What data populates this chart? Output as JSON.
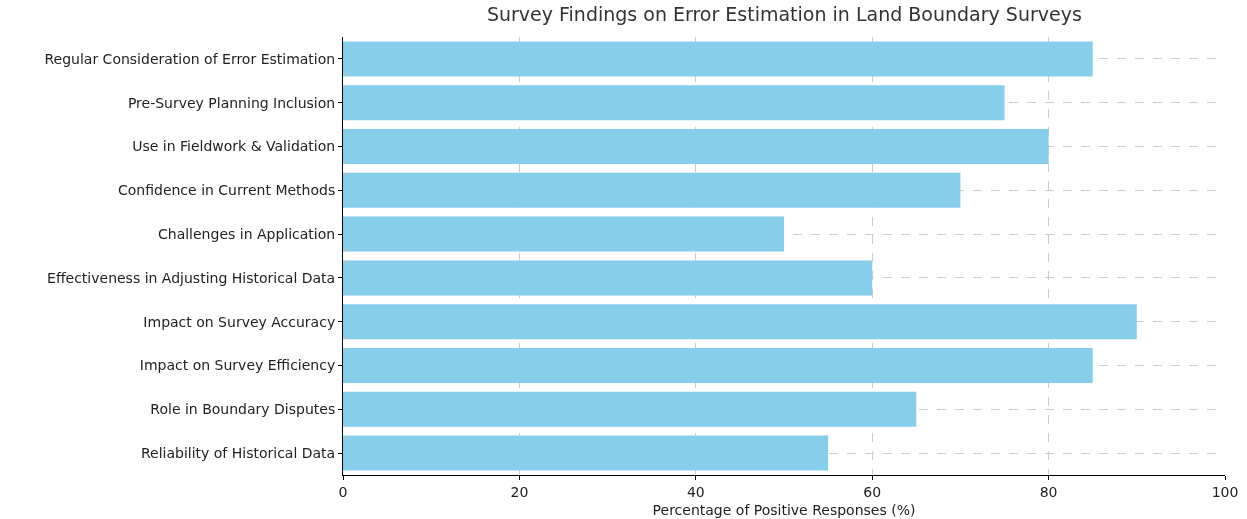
{
  "chart_data": {
    "type": "bar",
    "orientation": "horizontal",
    "title": "Survey Findings on Error Estimation in Land Boundary Surveys",
    "xlabel": "Percentage of Positive Responses (%)",
    "categories": [
      "Regular Consideration of Error Estimation",
      "Pre-Survey Planning Inclusion",
      "Use in Fieldwork & Validation",
      "Confidence in Current Methods",
      "Challenges in Application",
      "Effectiveness in Adjusting Historical Data",
      "Impact on Survey Accuracy",
      "Impact on Survey Efficiency",
      "Role in Boundary Disputes",
      "Reliability of Historical Data"
    ],
    "values": [
      85,
      75,
      80,
      70,
      50,
      60,
      90,
      85,
      65,
      55
    ],
    "color": "#87ceeb",
    "xlim": [
      0,
      100
    ],
    "xticks": [
      0,
      20,
      40,
      60,
      80,
      100
    ],
    "grid": true
  }
}
